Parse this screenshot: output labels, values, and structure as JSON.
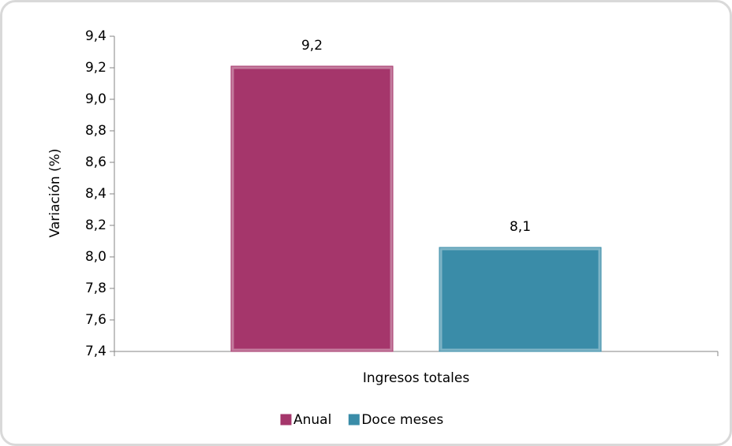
{
  "chart_data": {
    "type": "bar",
    "y_label": "Variación (%)",
    "categories": [
      "Ingresos totales"
    ],
    "series": [
      {
        "name": "Anual",
        "color": "#a5366b",
        "values": [
          9.21
        ],
        "value_labels": [
          "9,2"
        ]
      },
      {
        "name": "Doce meses",
        "color": "#3a8ca8",
        "values": [
          8.06
        ],
        "value_labels": [
          "8,1"
        ]
      }
    ],
    "ylim": [
      7.4,
      9.4
    ],
    "yticks": [
      {
        "value": 7.4,
        "label": "7,4"
      },
      {
        "value": 7.6,
        "label": "7,6"
      },
      {
        "value": 7.8,
        "label": "7,8"
      },
      {
        "value": 8.0,
        "label": "8,0"
      },
      {
        "value": 8.2,
        "label": "8,2"
      },
      {
        "value": 8.4,
        "label": "8,4"
      },
      {
        "value": 8.6,
        "label": "8,6"
      },
      {
        "value": 8.8,
        "label": "8,8"
      },
      {
        "value": 9.0,
        "label": "9,0"
      },
      {
        "value": 9.2,
        "label": "9,2"
      },
      {
        "value": 9.4,
        "label": "9,4"
      }
    ],
    "legend": "bottom"
  }
}
